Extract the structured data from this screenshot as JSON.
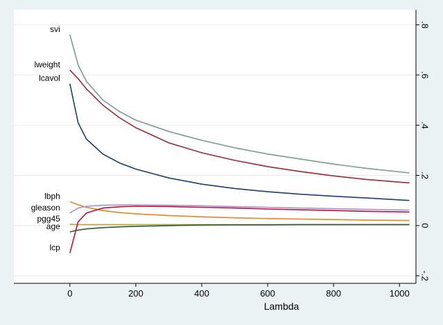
{
  "chart_data": {
    "type": "line",
    "xlabel": "Lambda",
    "ylabel": "",
    "xlim": [
      -170,
      1050
    ],
    "ylim": [
      -0.23,
      0.86
    ],
    "x_ticks": [
      0,
      200,
      400,
      600,
      800,
      1000
    ],
    "y_ticks": [
      -0.2,
      0,
      0.2,
      0.4,
      0.6,
      0.8
    ],
    "y_tick_labels": [
      "-.2",
      "0",
      ".2",
      ".4",
      ".6",
      ".8"
    ],
    "y_axis_side": "right",
    "grid": "horizontal",
    "x": [
      0,
      25,
      50,
      100,
      150,
      200,
      300,
      400,
      500,
      600,
      700,
      800,
      900,
      1030
    ],
    "series": [
      {
        "name": "svi",
        "color": "#7a9a96",
        "values": [
          0.76,
          0.64,
          0.575,
          0.5,
          0.455,
          0.42,
          0.375,
          0.34,
          0.31,
          0.285,
          0.265,
          0.245,
          0.228,
          0.21
        ]
      },
      {
        "name": "lweight",
        "color": "#9c2a35",
        "values": [
          0.62,
          0.585,
          0.545,
          0.48,
          0.43,
          0.39,
          0.33,
          0.29,
          0.26,
          0.235,
          0.215,
          0.198,
          0.184,
          0.17
        ]
      },
      {
        "name": "lcavol",
        "color": "#1b3f73",
        "values": [
          0.565,
          0.41,
          0.345,
          0.285,
          0.25,
          0.225,
          0.19,
          0.165,
          0.148,
          0.135,
          0.125,
          0.117,
          0.11,
          0.1
        ]
      },
      {
        "name": "lbph",
        "color": "#e8851b",
        "values": [
          0.095,
          0.083,
          0.073,
          0.06,
          0.052,
          0.047,
          0.04,
          0.035,
          0.031,
          0.028,
          0.026,
          0.024,
          0.022,
          0.02
        ]
      },
      {
        "name": "gleason",
        "color": "#a98ed0",
        "values": [
          0.05,
          0.07,
          0.077,
          0.081,
          0.082,
          0.082,
          0.081,
          0.079,
          0.076,
          0.073,
          0.07,
          0.067,
          0.065,
          0.062
        ]
      },
      {
        "name": "pgg45",
        "color": "#b8a34a",
        "values": [
          0.005,
          0.004,
          0.004,
          0.004,
          0.004,
          0.004,
          0.004,
          0.004,
          0.004,
          0.004,
          0.004,
          0.004,
          0.004,
          0.004
        ]
      },
      {
        "name": "age",
        "color": "#2e5a2e",
        "values": [
          -0.025,
          -0.018,
          -0.013,
          -0.008,
          -0.005,
          -0.003,
          0.0,
          0.002,
          0.003,
          0.003,
          0.004,
          0.004,
          0.004,
          0.004
        ]
      },
      {
        "name": "lcp",
        "color": "#c0103a",
        "values": [
          -0.11,
          0.015,
          0.05,
          0.07,
          0.075,
          0.077,
          0.076,
          0.073,
          0.07,
          0.066,
          0.063,
          0.06,
          0.057,
          0.054
        ]
      }
    ],
    "series_label_ys": {
      "svi": 0.76,
      "lweight": 0.62,
      "lcavol": 0.565,
      "lbph": 0.095,
      "gleason": 0.05,
      "pgg45": 0.005,
      "age": -0.025,
      "lcp": -0.11
    }
  }
}
